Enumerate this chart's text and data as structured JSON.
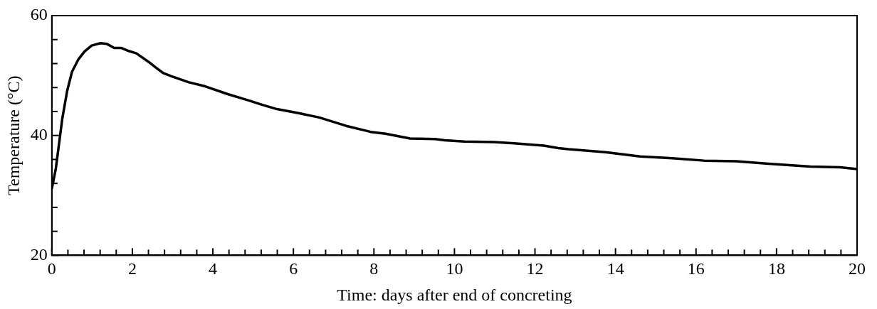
{
  "chart_data": {
    "type": "line",
    "xlabel": "Time: days after end of concreting",
    "ylabel": "Temperature (°C)",
    "legend": false,
    "grid": false,
    "marker": "none",
    "line_style": "solid",
    "xlim": [
      0,
      20
    ],
    "ylim": [
      20,
      60
    ],
    "xticks": [
      0,
      {
        "value": 0.4,
        "label": null
      },
      {
        "value": 0.8,
        "label": null
      },
      {
        "value": 1.2,
        "label": null
      },
      {
        "value": 1.6,
        "label": null
      },
      2,
      {
        "value": 2.4,
        "label": null
      },
      {
        "value": 2.8,
        "label": null
      },
      {
        "value": 3.2,
        "label": null
      },
      {
        "value": 3.6,
        "label": null
      },
      4,
      {
        "value": 4.4,
        "label": null
      },
      {
        "value": 4.8,
        "label": null
      },
      {
        "value": 5.2,
        "label": null
      },
      {
        "value": 5.6,
        "label": null
      },
      6,
      {
        "value": 6.4,
        "label": null
      },
      {
        "value": 6.8,
        "label": null
      },
      {
        "value": 7.2,
        "label": null
      },
      {
        "value": 7.6,
        "label": null
      },
      8,
      {
        "value": 8.4,
        "label": null
      },
      {
        "value": 8.8,
        "label": null
      },
      {
        "value": 9.2,
        "label": null
      },
      {
        "value": 9.6,
        "label": null
      },
      10,
      {
        "value": 10.4,
        "label": null
      },
      {
        "value": 10.8,
        "label": null
      },
      {
        "value": 11.2,
        "label": null
      },
      {
        "value": 11.6,
        "label": null
      },
      12,
      {
        "value": 12.4,
        "label": null
      },
      {
        "value": 12.8,
        "label": null
      },
      {
        "value": 13.2,
        "label": null
      },
      {
        "value": 13.6,
        "label": null
      },
      14,
      {
        "value": 14.4,
        "label": null
      },
      {
        "value": 14.8,
        "label": null
      },
      {
        "value": 15.2,
        "label": null
      },
      {
        "value": 15.6,
        "label": null
      },
      16,
      {
        "value": 16.4,
        "label": null
      },
      {
        "value": 16.8,
        "label": null
      },
      {
        "value": 17.2,
        "label": null
      },
      {
        "value": 17.6,
        "label": null
      },
      18,
      {
        "value": 18.4,
        "label": null
      },
      {
        "value": 18.8,
        "label": null
      },
      {
        "value": 19.2,
        "label": null
      },
      {
        "value": 19.6,
        "label": null
      },
      20
    ],
    "yticks": [
      20,
      {
        "value": 24,
        "label": null
      },
      {
        "value": 28,
        "label": null
      },
      {
        "value": 32,
        "label": null
      },
      {
        "value": 36,
        "label": null
      },
      40,
      {
        "value": 44,
        "label": null
      },
      {
        "value": 48,
        "label": null
      },
      {
        "value": 52,
        "label": null
      },
      {
        "value": 56,
        "label": null
      },
      60
    ],
    "series": [
      {
        "color": "#000000",
        "x": [
          0,
          0.1,
          0.26,
          0.38,
          0.5,
          0.66,
          0.81,
          0.99,
          1.21,
          1.36,
          1.55,
          1.73,
          1.91,
          2.1,
          2.4,
          2.59,
          2.77,
          2.96,
          3.39,
          3.81,
          4.37,
          4.86,
          5.23,
          5.59,
          6.15,
          6.64,
          7.31,
          7.92,
          8.29,
          8.9,
          9.52,
          9.76,
          10.25,
          10.99,
          11.48,
          12.22,
          12.58,
          12.83,
          13.75,
          14.61,
          15.41,
          16.2,
          17.0,
          17.74,
          18.84,
          19.58,
          20
        ],
        "values": [
          31.1,
          34.5,
          42.8,
          47.4,
          50.6,
          52.7,
          54.0,
          55.0,
          55.4,
          55.3,
          54.6,
          54.6,
          54.1,
          53.7,
          52.3,
          51.3,
          50.4,
          49.9,
          48.9,
          48.2,
          46.9,
          45.9,
          45.1,
          44.4,
          43.7,
          43.0,
          41.6,
          40.6,
          40.3,
          39.5,
          39.4,
          39.2,
          39.0,
          38.9,
          38.7,
          38.3,
          37.9,
          37.7,
          37.2,
          36.5,
          36.2,
          35.8,
          35.7,
          35.3,
          34.8,
          34.7,
          34.4
        ]
      }
    ]
  }
}
